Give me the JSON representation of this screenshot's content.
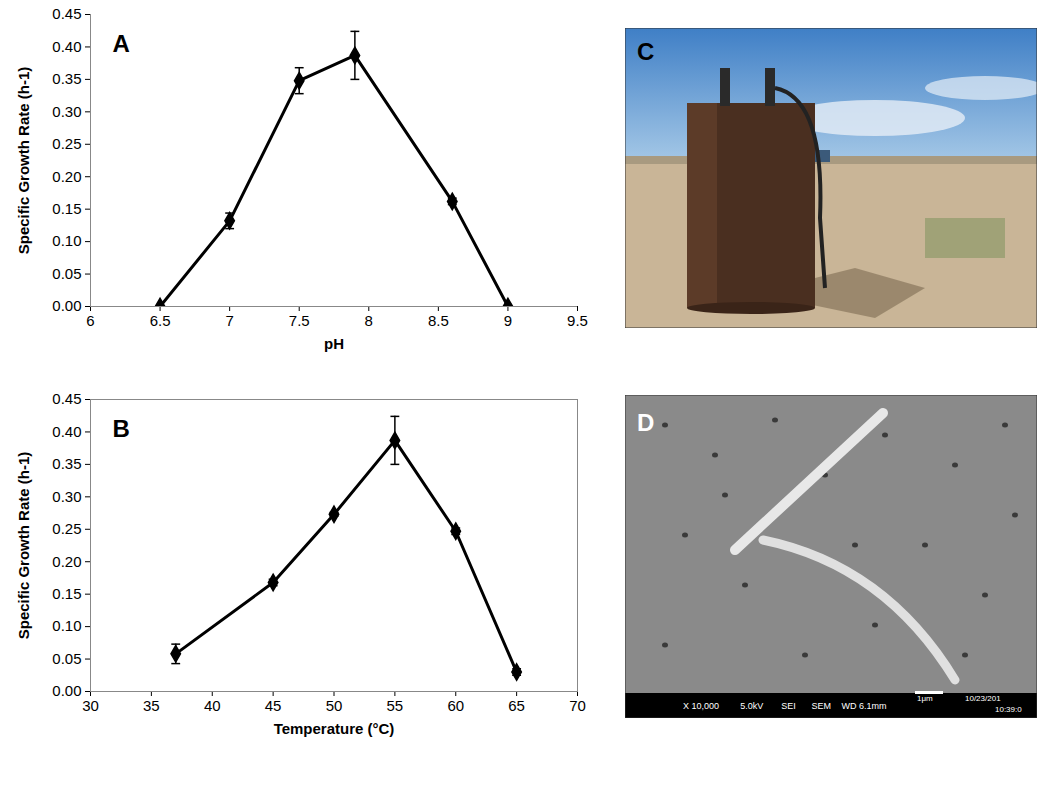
{
  "chart_data": [
    {
      "type": "line",
      "title": "A",
      "x_label": "pH",
      "y_label": "Specific Growth Rate (h-1)",
      "x": [
        6.5,
        7,
        7.5,
        7.9,
        8.6,
        9
      ],
      "values": [
        0,
        0.132,
        0.348,
        0.387,
        0.162,
        0
      ],
      "errors": [
        0,
        0.012,
        0.02,
        0.037,
        0.005,
        0
      ],
      "color": "#000000",
      "marker": "diamond",
      "line_style": "solid",
      "grid": false,
      "xlim": [
        6,
        9.5
      ],
      "xticks": [
        6,
        6.5,
        7,
        7.5,
        8,
        8.5,
        9,
        9.5
      ],
      "ylim": [
        0,
        0.45
      ],
      "yticks": [
        {
          "value": 0,
          "label": "0.00"
        },
        {
          "value": 0.05,
          "label": "0.05"
        },
        {
          "value": 0.1,
          "label": "0.10"
        },
        {
          "value": 0.15,
          "label": "0.15"
        },
        {
          "value": 0.2,
          "label": "0.20"
        },
        {
          "value": 0.25,
          "label": "0.25"
        },
        {
          "value": 0.3,
          "label": "0.30"
        },
        {
          "value": 0.35,
          "label": "0.35"
        },
        {
          "value": 0.4,
          "label": "0.40"
        },
        {
          "value": 0.45,
          "label": "0.45"
        }
      ]
    },
    {
      "type": "line",
      "title": "B",
      "x_label": "Temperature (°C)",
      "y_label": "Specific Growth Rate (h-1)",
      "x": [
        37,
        45,
        50,
        55,
        60,
        65
      ],
      "values": [
        0.058,
        0.168,
        0.273,
        0.387,
        0.247,
        0.03
      ],
      "errors": [
        0.015,
        0.005,
        0.003,
        0.037,
        0.005,
        0.005
      ],
      "color": "#000000",
      "marker": "diamond",
      "line_style": "solid",
      "grid": false,
      "xlim": [
        30,
        70
      ],
      "xticks": [
        30,
        35,
        40,
        45,
        50,
        55,
        60,
        65,
        70
      ],
      "ylim": [
        0,
        0.45
      ],
      "yticks": [
        {
          "value": 0,
          "label": "0.00"
        },
        {
          "value": 0.05,
          "label": "0.05"
        },
        {
          "value": 0.1,
          "label": "0.10"
        },
        {
          "value": 0.15,
          "label": "0.15"
        },
        {
          "value": 0.2,
          "label": "0.20"
        },
        {
          "value": 0.25,
          "label": "0.25"
        },
        {
          "value": 0.3,
          "label": "0.30"
        },
        {
          "value": 0.35,
          "label": "0.35"
        },
        {
          "value": 0.4,
          "label": "0.40"
        },
        {
          "value": 0.45,
          "label": "0.45"
        }
      ]
    }
  ],
  "images": [
    {
      "label": "C"
    },
    {
      "label": "D",
      "scale_bar": "1μm",
      "info": [
        "X 10,000",
        "5.0kV",
        "SEI",
        "SEM",
        "WD 6.1mm"
      ],
      "date": "10/23/201",
      "time": "10:39:0"
    }
  ]
}
